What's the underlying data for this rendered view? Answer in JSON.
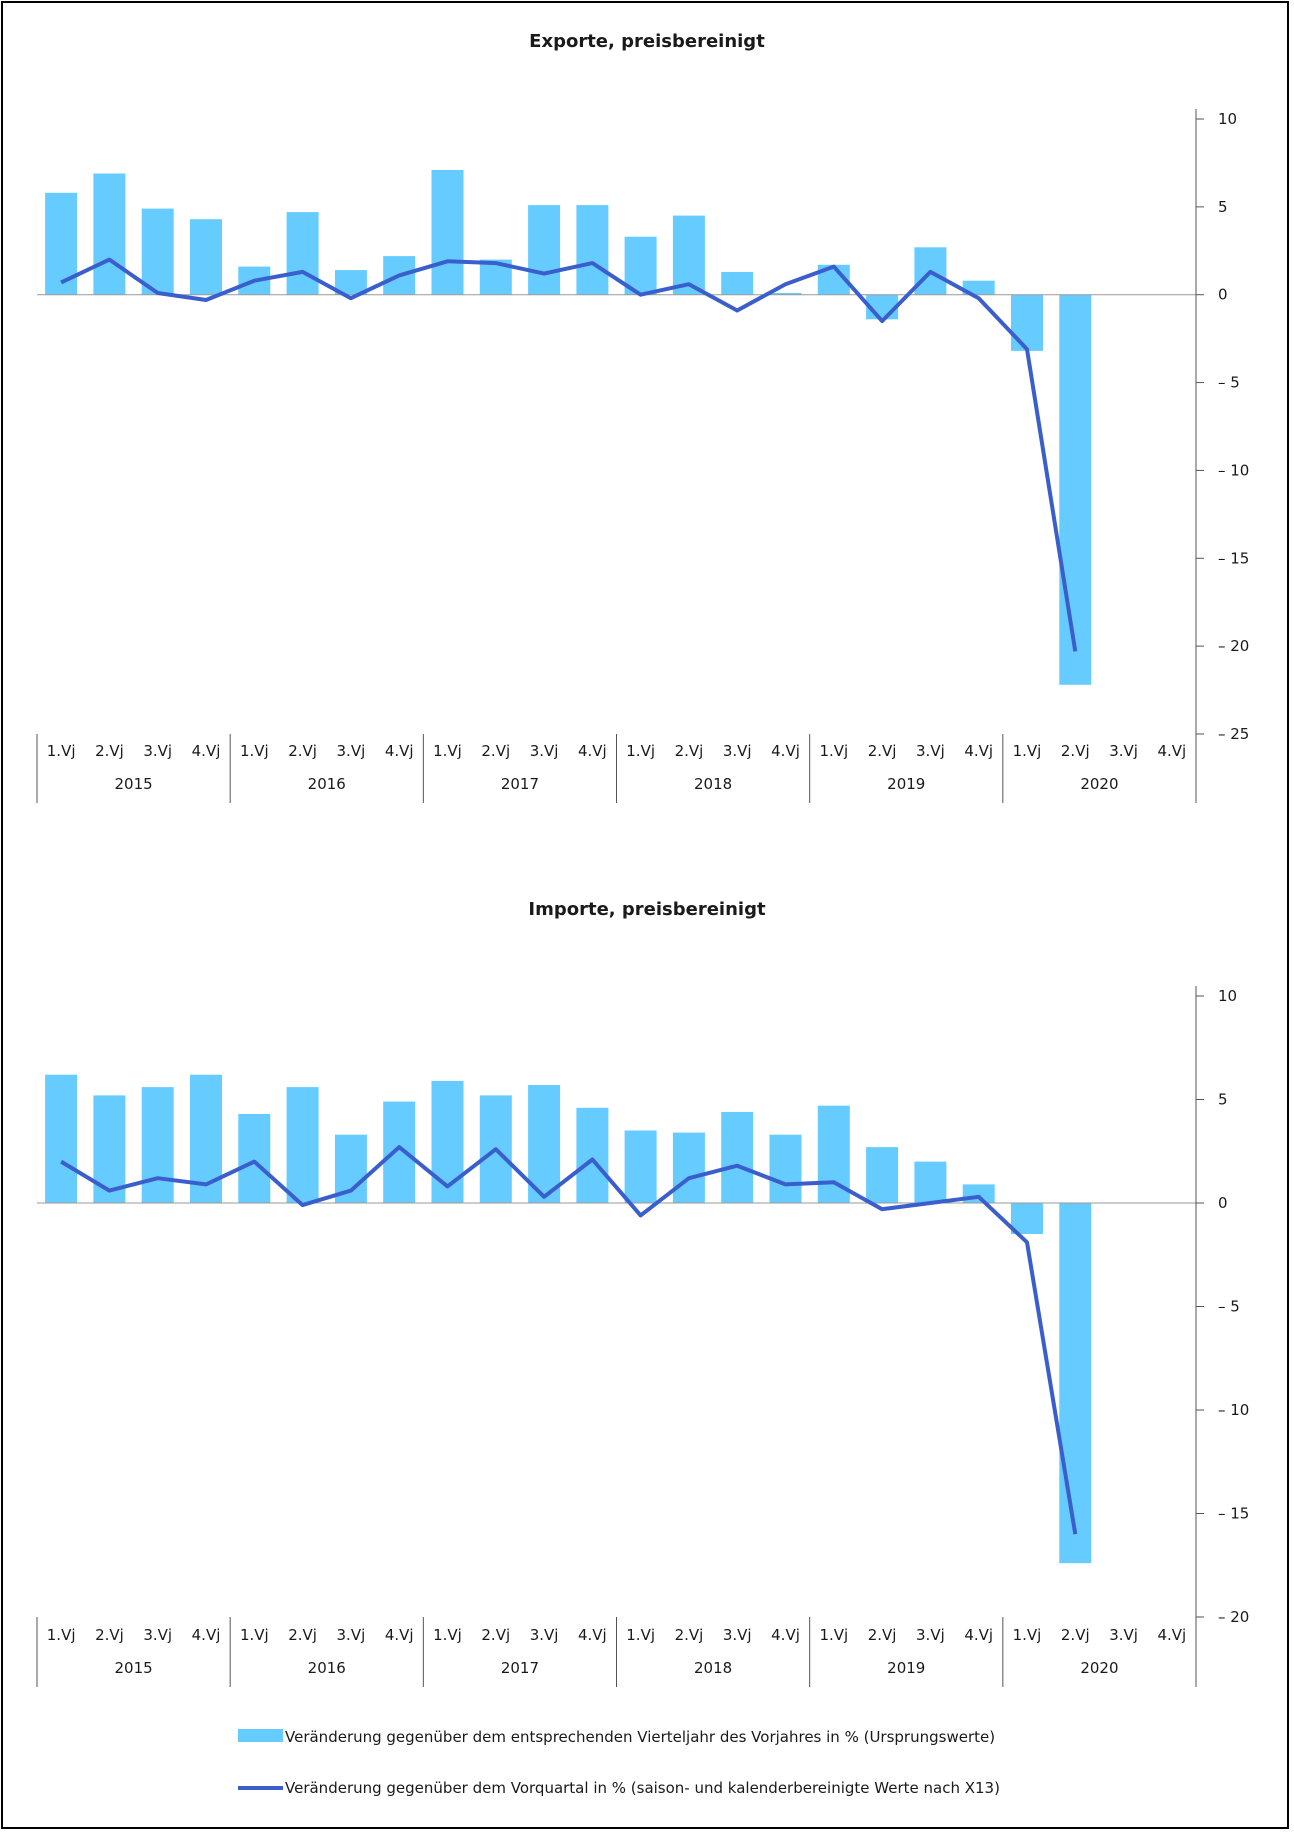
{
  "chart_data": [
    {
      "type": "bar",
      "title": "Exporte, preisbereinigt",
      "quarters": [
        "1.Vj",
        "2.Vj",
        "3.Vj",
        "4.Vj"
      ],
      "years": [
        "2015",
        "2016",
        "2017",
        "2018",
        "2019",
        "2020"
      ],
      "categories": [
        "2015 1.Vj",
        "2015 2.Vj",
        "2015 3.Vj",
        "2015 4.Vj",
        "2016 1.Vj",
        "2016 2.Vj",
        "2016 3.Vj",
        "2016 4.Vj",
        "2017 1.Vj",
        "2017 2.Vj",
        "2017 3.Vj",
        "2017 4.Vj",
        "2018 1.Vj",
        "2018 2.Vj",
        "2018 3.Vj",
        "2018 4.Vj",
        "2019 1.Vj",
        "2019 2.Vj",
        "2019 3.Vj",
        "2019 4.Vj",
        "2020 1.Vj",
        "2020 2.Vj",
        "2020 3.Vj",
        "2020 4.Vj"
      ],
      "ylim": [
        -25,
        10
      ],
      "yticks": [
        10,
        5,
        0,
        -5,
        -10,
        -15,
        -20,
        -25
      ],
      "ytick_labels": [
        "10",
        "5",
        "0",
        "– 5",
        "– 10",
        "– 15",
        "– 20",
        "– 25"
      ],
      "series": [
        {
          "name": "Veränderung gegenüber dem entsprechenden Vierteljahr des Vorjahres in % (Ursprungswerte)",
          "type": "bar",
          "color": "#66ccff",
          "values": [
            5.8,
            6.9,
            4.9,
            4.3,
            1.6,
            4.7,
            1.4,
            2.2,
            7.1,
            2.0,
            5.1,
            5.1,
            3.3,
            4.5,
            1.3,
            0.1,
            1.7,
            -1.4,
            2.7,
            0.8,
            -3.2,
            -22.2,
            null,
            null
          ]
        },
        {
          "name": "Veränderung gegenüber dem Vorquartal in % (saison- und kalenderbereinigte Werte nach X13)",
          "type": "line",
          "color": "#3a5fcd",
          "values": [
            0.7,
            2.0,
            0.1,
            -0.3,
            0.8,
            1.3,
            -0.2,
            1.1,
            1.9,
            1.8,
            1.2,
            1.8,
            0.0,
            0.6,
            -0.9,
            0.6,
            1.6,
            -1.5,
            1.3,
            -0.2,
            -3.1,
            -20.3,
            null,
            null
          ]
        }
      ]
    },
    {
      "type": "bar",
      "title": "Importe, preisbereinigt",
      "quarters": [
        "1.Vj",
        "2.Vj",
        "3.Vj",
        "4.Vj"
      ],
      "years": [
        "2015",
        "2016",
        "2017",
        "2018",
        "2019",
        "2020"
      ],
      "categories": [
        "2015 1.Vj",
        "2015 2.Vj",
        "2015 3.Vj",
        "2015 4.Vj",
        "2016 1.Vj",
        "2016 2.Vj",
        "2016 3.Vj",
        "2016 4.Vj",
        "2017 1.Vj",
        "2017 2.Vj",
        "2017 3.Vj",
        "2017 4.Vj",
        "2018 1.Vj",
        "2018 2.Vj",
        "2018 3.Vj",
        "2018 4.Vj",
        "2019 1.Vj",
        "2019 2.Vj",
        "2019 3.Vj",
        "2019 4.Vj",
        "2020 1.Vj",
        "2020 2.Vj",
        "2020 3.Vj",
        "2020 4.Vj"
      ],
      "ylim": [
        -20,
        10
      ],
      "yticks": [
        10,
        5,
        0,
        -5,
        -10,
        -15,
        -20
      ],
      "ytick_labels": [
        "10",
        "5",
        "0",
        "– 5",
        "– 10",
        "– 15",
        "– 20"
      ],
      "series": [
        {
          "name": "Veränderung gegenüber dem entsprechenden Vierteljahr des Vorjahres in % (Ursprungswerte)",
          "type": "bar",
          "color": "#66ccff",
          "values": [
            6.2,
            5.2,
            5.6,
            6.2,
            4.3,
            5.6,
            3.3,
            4.9,
            5.9,
            5.2,
            5.7,
            4.6,
            3.5,
            3.4,
            4.4,
            3.3,
            4.7,
            2.7,
            2.0,
            0.9,
            -1.5,
            -17.4,
            null,
            null
          ]
        },
        {
          "name": "Veränderung gegenüber dem Vorquartal in % (saison- und kalenderbereinigte Werte nach X13)",
          "type": "line",
          "color": "#3a5fcd",
          "values": [
            2.0,
            0.6,
            1.2,
            0.9,
            2.0,
            -0.1,
            0.6,
            2.7,
            0.8,
            2.6,
            0.3,
            2.1,
            -0.6,
            1.2,
            1.8,
            0.9,
            1.0,
            -0.3,
            0.0,
            0.3,
            -1.9,
            -16.0,
            null,
            null
          ]
        }
      ]
    }
  ],
  "legend": {
    "bar_label": "Veränderung gegenüber dem entsprechenden Vierteljahr des Vorjahres in % (Ursprungswerte)",
    "line_label": "Veränderung gegenüber dem Vorquartal in % (saison- und kalenderbereinigte Werte nach X13)",
    "bar_color": "#66ccff",
    "line_color": "#3a5fcd"
  }
}
